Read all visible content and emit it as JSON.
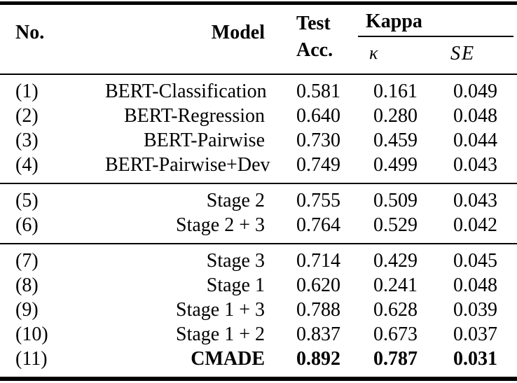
{
  "colors": {
    "text": "#000000",
    "background": "#ffffff",
    "rule": "#000000"
  },
  "header": {
    "no": "No.",
    "model": "Model",
    "test_line1": "Test",
    "test_line2": "Acc.",
    "kappa_group": "Kappa",
    "kappa_symbol": "κ",
    "se": "SE"
  },
  "rows": [
    {
      "no": "(1)",
      "model": "BERT-Classification",
      "test_acc": "0.581",
      "kappa": "0.161",
      "se": "0.049"
    },
    {
      "no": "(2)",
      "model": "BERT-Regression",
      "test_acc": "0.640",
      "kappa": "0.280",
      "se": "0.048"
    },
    {
      "no": "(3)",
      "model": "BERT-Pairwise",
      "test_acc": "0.730",
      "kappa": "0.459",
      "se": "0.044"
    },
    {
      "no": "(4)",
      "model": "BERT-Pairwise+Dev",
      "test_acc": "0.749",
      "kappa": "0.499",
      "se": "0.043"
    },
    {
      "no": "(5)",
      "model": "Stage 2",
      "test_acc": "0.755",
      "kappa": "0.509",
      "se": "0.043"
    },
    {
      "no": "(6)",
      "model": "Stage 2 + 3",
      "test_acc": "0.764",
      "kappa": "0.529",
      "se": "0.042"
    },
    {
      "no": "(7)",
      "model": "Stage 3",
      "test_acc": "0.714",
      "kappa": "0.429",
      "se": "0.045"
    },
    {
      "no": "(8)",
      "model": "Stage 1",
      "test_acc": "0.620",
      "kappa": "0.241",
      "se": "0.048"
    },
    {
      "no": "(9)",
      "model": "Stage 1 + 3",
      "test_acc": "0.788",
      "kappa": "0.628",
      "se": "0.039"
    },
    {
      "no": "(10)",
      "model": "Stage 1 + 2",
      "test_acc": "0.837",
      "kappa": "0.673",
      "se": "0.037"
    },
    {
      "no": "(11)",
      "model": "CMADE",
      "test_acc": "0.892",
      "kappa": "0.787",
      "se": "0.031"
    }
  ]
}
